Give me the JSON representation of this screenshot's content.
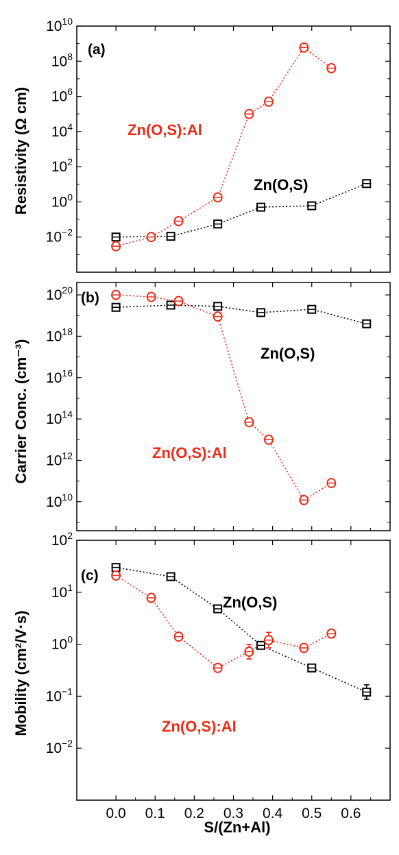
{
  "chart_data": [
    {
      "type": "scatter",
      "panel_label": "(a)",
      "ylabel": "Resistivity (Ω cm)",
      "yscale": "log",
      "xlim": [
        -0.1,
        0.7
      ],
      "ylim_exp": [
        -4,
        10
      ],
      "yticks_exp": [
        -2,
        0,
        2,
        4,
        6,
        8,
        10
      ],
      "series": [
        {
          "name": "Zn(O,S)",
          "color": "#000000",
          "marker": "square",
          "x": [
            0.0,
            0.14,
            0.26,
            0.37,
            0.5,
            0.64
          ],
          "y": [
            0.01,
            0.011,
            0.055,
            0.5,
            0.6,
            11
          ]
        },
        {
          "name": "Zn(O,S):Al",
          "color": "#ee2a16",
          "marker": "circle",
          "x": [
            0.0,
            0.09,
            0.16,
            0.26,
            0.34,
            0.39,
            0.48,
            0.55
          ],
          "y": [
            0.003,
            0.01,
            0.08,
            1.8,
            100000,
            500000,
            600000000,
            40000000
          ]
        }
      ]
    },
    {
      "type": "scatter",
      "panel_label": "(b)",
      "ylabel": "Carrier Conc. (cm⁻³)",
      "yscale": "log",
      "xlim": [
        -0.1,
        0.7
      ],
      "ylim_exp": [
        8.6,
        20.6
      ],
      "yticks_exp": [
        10,
        12,
        14,
        16,
        18,
        20
      ],
      "series": [
        {
          "name": "Zn(O,S)",
          "color": "#000000",
          "marker": "square",
          "x": [
            0.0,
            0.14,
            0.26,
            0.37,
            0.5,
            0.64
          ],
          "y": [
            2.5e+19,
            3.2e+19,
            2.8e+19,
            1.4e+19,
            2e+19,
            4e+18
          ]
        },
        {
          "name": "Zn(O,S):Al",
          "color": "#ee2a16",
          "marker": "circle",
          "x": [
            0.0,
            0.09,
            0.16,
            0.26,
            0.34,
            0.39,
            0.48,
            0.55
          ],
          "y": [
            1e+20,
            8e+19,
            5e+19,
            9e+18,
            70000000000000.0,
            10000000000000.0,
            12000000000.0,
            80000000000.0
          ]
        }
      ]
    },
    {
      "type": "scatter",
      "panel_label": "(c)",
      "ylabel": "Mobility (cm²/V·s)",
      "yscale": "log",
      "xlim": [
        -0.1,
        0.7
      ],
      "ylim_exp": [
        -3,
        2
      ],
      "yticks_exp": [
        -2,
        -1,
        0,
        1,
        2
      ],
      "xlabel": "S/(Zn+Al)",
      "xticks": [
        "0.0",
        "0.1",
        "0.2",
        "0.3",
        "0.4",
        "0.5",
        "0.6"
      ],
      "series": [
        {
          "name": "Zn(O,S)",
          "color": "#000000",
          "marker": "square",
          "x": [
            0.0,
            0.14,
            0.26,
            0.37,
            0.5,
            0.64
          ],
          "y": [
            30,
            20,
            4.8,
            0.95,
            0.35,
            0.12
          ],
          "err": [
            0.05,
            0.05,
            0.07,
            0.06,
            0.05,
            0.14
          ]
        },
        {
          "name": "Zn(O,S):Al",
          "color": "#ee2a16",
          "marker": "circle",
          "x": [
            0.0,
            0.09,
            0.16,
            0.26,
            0.34,
            0.39,
            0.48,
            0.55
          ],
          "y": [
            21,
            7.8,
            1.4,
            0.35,
            0.72,
            1.2,
            0.85,
            1.6
          ],
          "err": [
            0.06,
            0.05,
            0.06,
            0.05,
            0.14,
            0.15,
            0.06,
            0.08
          ]
        }
      ]
    }
  ],
  "ui": {
    "series_labels": {
      "a_black": "Zn(O,S)",
      "a_red": "Zn(O,S):Al",
      "b_black": "Zn(O,S)",
      "b_red": "Zn(O,S):Al",
      "c_black": "Zn(O,S)",
      "c_red": "Zn(O,S):Al"
    }
  }
}
